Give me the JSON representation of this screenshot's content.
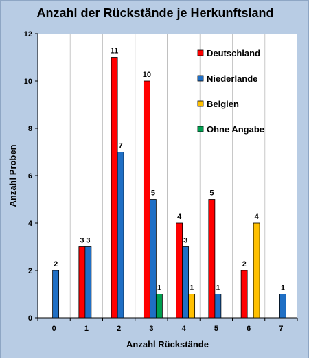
{
  "chart_data": {
    "type": "bar",
    "title": "Anzahl der Rückstände je Herkunftsland",
    "xlabel": "Anzahl Rückstände",
    "ylabel": "Anzahl Proben",
    "categories": [
      "0",
      "1",
      "2",
      "3",
      "4",
      "5",
      "6",
      "7"
    ],
    "ylim": [
      0,
      12
    ],
    "yticks": [
      0,
      2,
      4,
      6,
      8,
      10,
      12
    ],
    "grid": "vertical",
    "legend": "top-right",
    "series": [
      {
        "name": "Deutschland",
        "color": "#ff0000",
        "values": [
          null,
          3,
          11,
          10,
          4,
          5,
          2,
          null
        ]
      },
      {
        "name": "Niederlande",
        "color": "#1f6fc5",
        "values": [
          2,
          3,
          7,
          5,
          3,
          1,
          null,
          1
        ]
      },
      {
        "name": "Belgien",
        "color": "#ffc000",
        "values": [
          null,
          null,
          null,
          null,
          1,
          null,
          4,
          null
        ]
      },
      {
        "name": "Ohne Angabe",
        "color": "#00a050",
        "values": [
          null,
          null,
          null,
          1,
          null,
          null,
          null,
          null
        ]
      }
    ]
  }
}
